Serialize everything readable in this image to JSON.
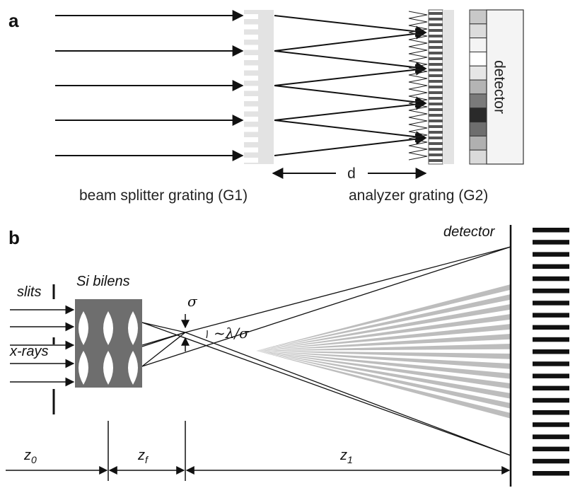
{
  "panel_a": {
    "letter": "a",
    "d_label": "d",
    "detector_label": "detector",
    "g1_label": "beam splitter grating (G1)",
    "g2_label": "analyzer grating (G2)",
    "detector_pixel_shades": [
      "#c8c8c8",
      "#dcdcdc",
      "#f4f4f4",
      "#ffffff",
      "#e6e6e6",
      "#b4b4b4",
      "#7a7a7a",
      "#2a2a2a",
      "#6e6e6e",
      "#b0b0b0",
      "#dadada"
    ]
  },
  "panel_b": {
    "letter": "b",
    "slits_label": "slits",
    "xrays_label": "x-rays",
    "lens_label": "Si bilens",
    "detector_label": "detector",
    "sigma_label": "σ",
    "angle_label": "~λ/σ",
    "z0": {
      "base": "z",
      "sub": "0"
    },
    "zf": {
      "base": "z",
      "sub": "f"
    },
    "z1": {
      "base": "z",
      "sub": "1"
    }
  },
  "colors": {
    "line": "#111111",
    "grating_grey": "#e3e3e3",
    "lens_body": "#6e6e6e",
    "fringe_grey": "#bdbdbd"
  }
}
